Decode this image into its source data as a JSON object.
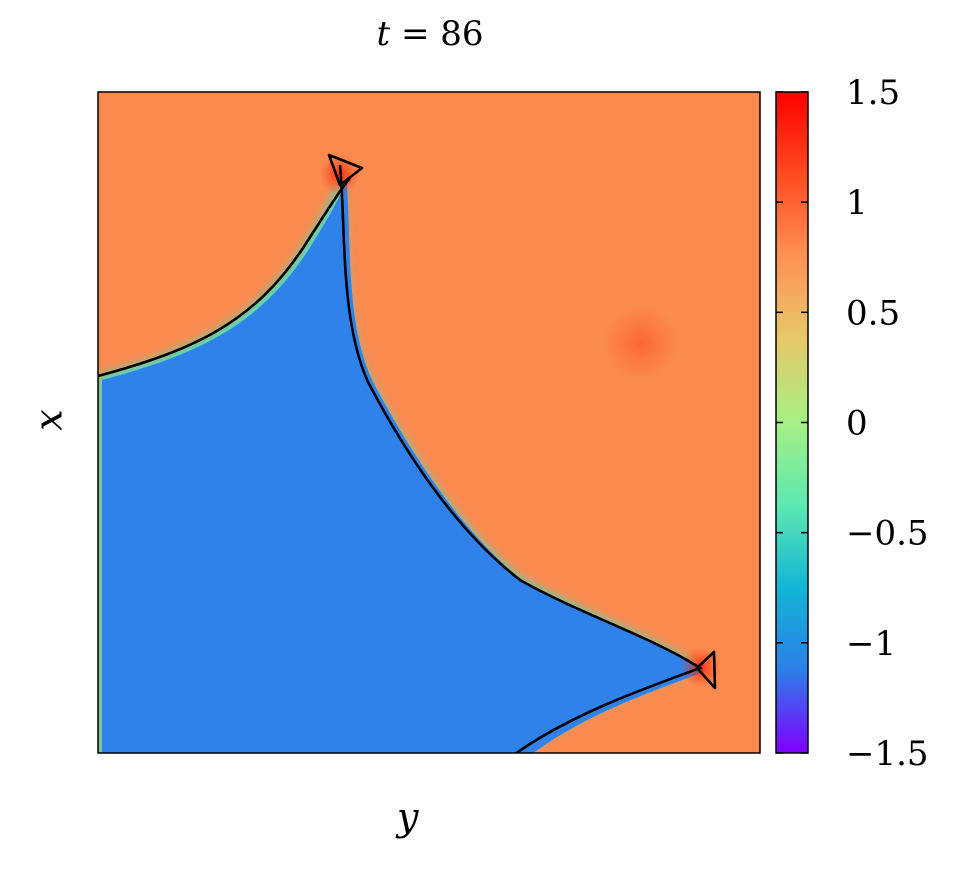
{
  "chart_data": {
    "type": "heatmap",
    "title_parts": {
      "var": "t",
      "rest": " = 86"
    },
    "xlabel": "y",
    "ylabel": "x",
    "colorbar": {
      "min": -1.5,
      "max": 1.5,
      "ticks": [
        {
          "value": 1.5,
          "label": "1.5"
        },
        {
          "value": 1,
          "label": "1"
        },
        {
          "value": 0.5,
          "label": "0.5"
        },
        {
          "value": 0,
          "label": "0"
        },
        {
          "value": -0.5,
          "label": "−0.5"
        },
        {
          "value": -1,
          "label": "−1"
        },
        {
          "value": -1.5,
          "label": "−1.5"
        }
      ],
      "colors": [
        "#7f00ff",
        "#2c7fe8",
        "#12b5d6",
        "#5de8b0",
        "#a6f085",
        "#e6c96b",
        "#ff9255",
        "#ff4b22",
        "#ff0000"
      ]
    },
    "regions": [
      {
        "name": "phase-plus",
        "value": 1,
        "color": "#fb8a4f"
      },
      {
        "name": "phase-minus",
        "value": -1,
        "color": "#2f82ea"
      }
    ],
    "hot_spots": [
      {
        "u": 0.365,
        "v": 0.125
      },
      {
        "u": 0.91,
        "v": 0.87
      },
      {
        "u": 0.82,
        "v": 0.38
      }
    ]
  }
}
